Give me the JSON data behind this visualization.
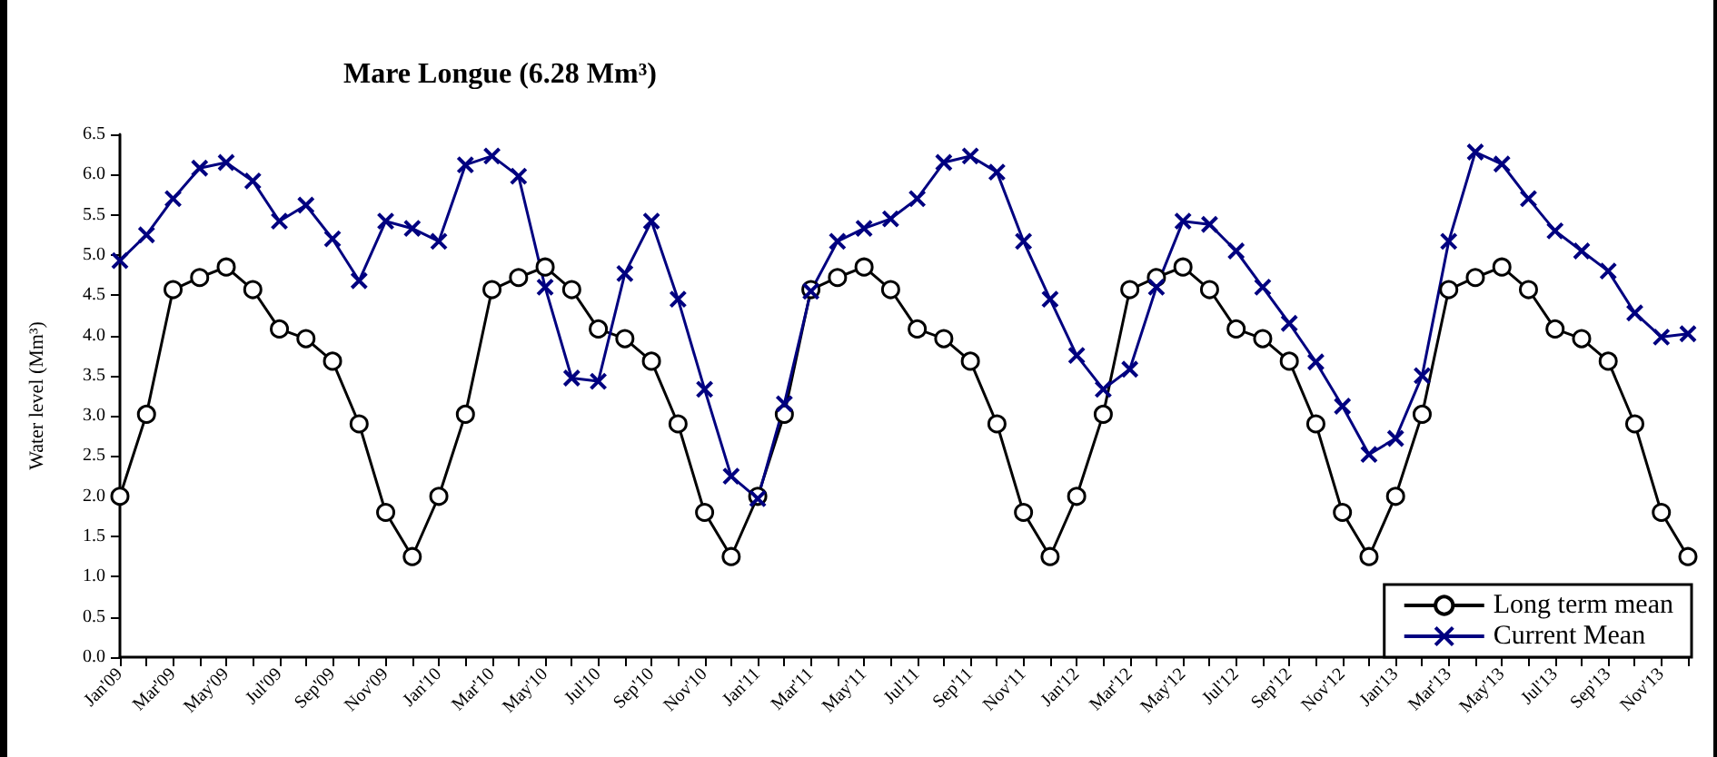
{
  "chart_data": {
    "type": "line",
    "title": "Mare Longue (6.28 Mm³)",
    "ylabel": "Water level (Mm³)",
    "categories": [
      "Jan'09",
      null,
      "Mar'09",
      null,
      "May'09",
      null,
      "Jul'09",
      null,
      "Sep'09",
      null,
      "Nov'09",
      null,
      "Jan'10",
      null,
      "Mar'10",
      null,
      "May'10",
      null,
      "Jul'10",
      null,
      "Sep'10",
      null,
      "Nov'10",
      null,
      "Jan'11",
      null,
      "Mar'11",
      null,
      "May'11",
      null,
      "Jul'11",
      null,
      "Sep'11",
      null,
      "Nov'11",
      null,
      "Jan'12",
      null,
      "Mar'12",
      null,
      "May'12",
      null,
      "Jul'12",
      null,
      "Sep'12",
      null,
      "Nov'12",
      null,
      "Jan'13",
      null,
      "Mar'13",
      null,
      "May'13",
      null,
      "Jul'13",
      null,
      "Sep'13",
      null,
      "Nov'13",
      null
    ],
    "series": [
      {
        "name": "Long term mean",
        "color": "#000000",
        "marker": "circle",
        "values": [
          2.0,
          3.02,
          4.57,
          4.72,
          4.85,
          4.57,
          4.08,
          3.96,
          3.68,
          2.9,
          1.8,
          1.25,
          2.0,
          3.02,
          4.57,
          4.72,
          4.85,
          4.57,
          4.08,
          3.96,
          3.68,
          2.9,
          1.8,
          1.25,
          2.0,
          3.02,
          4.57,
          4.72,
          4.85,
          4.57,
          4.08,
          3.96,
          3.68,
          2.9,
          1.8,
          1.25,
          2.0,
          3.02,
          4.57,
          4.72,
          4.85,
          4.57,
          4.08,
          3.96,
          3.68,
          2.9,
          1.8,
          1.25,
          2.0,
          3.02,
          4.57,
          4.72,
          4.85,
          4.57,
          4.08,
          3.96,
          3.68,
          2.9,
          1.8,
          1.25
        ]
      },
      {
        "name": "Current Mean",
        "color": "#000080",
        "marker": "cross",
        "values": [
          4.93,
          5.25,
          5.7,
          6.08,
          6.15,
          5.92,
          5.42,
          5.62,
          5.2,
          4.68,
          5.42,
          5.33,
          5.17,
          6.12,
          6.23,
          5.98,
          4.6,
          3.47,
          3.43,
          4.77,
          5.42,
          4.45,
          3.33,
          2.25,
          1.97,
          3.15,
          4.55,
          5.17,
          5.33,
          5.45,
          5.7,
          6.15,
          6.23,
          6.03,
          5.17,
          4.45,
          3.75,
          3.33,
          3.58,
          4.6,
          5.42,
          5.38,
          5.05,
          4.6,
          4.15,
          3.67,
          3.12,
          2.52,
          2.72,
          3.5,
          5.17,
          6.28,
          6.13,
          5.7,
          5.3,
          5.05,
          4.8,
          4.28,
          3.98,
          4.02
        ]
      }
    ],
    "ylim": [
      0,
      6.5
    ],
    "yticks": [
      {
        "value": 0,
        "label": "0.0"
      },
      {
        "value": 0.5,
        "label": "0.5"
      },
      {
        "value": 1,
        "label": "1.0"
      },
      {
        "value": 1.5,
        "label": "1.5"
      },
      {
        "value": 2,
        "label": "2.0"
      },
      {
        "value": 2.5,
        "label": "2.5"
      },
      {
        "value": 3,
        "label": "3.0"
      },
      {
        "value": 3.5,
        "label": "3.5"
      },
      {
        "value": 4,
        "label": "4.0"
      },
      {
        "value": 4.5,
        "label": "4.5"
      },
      {
        "value": 5,
        "label": "5.0"
      },
      {
        "value": 5.5,
        "label": "5.5"
      },
      {
        "value": 6,
        "label": "6.0"
      },
      {
        "value": 6.5,
        "label": "6.5"
      }
    ],
    "grid": false,
    "legend": "bottom right",
    "line_style": "solid"
  }
}
